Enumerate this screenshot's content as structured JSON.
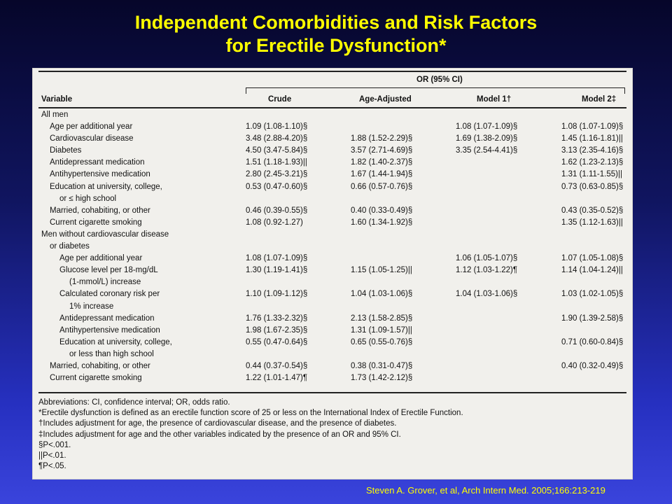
{
  "title": {
    "line1": "Independent Comorbidities and Risk Factors",
    "line2": "for Erectile Dysfunction*"
  },
  "table": {
    "group_header": "OR (95% CI)",
    "headers": [
      "Variable",
      "Crude",
      "Age-Adjusted",
      "Model 1†",
      "Model 2‡"
    ],
    "rows": [
      {
        "indent": 0,
        "variable": "All men",
        "crude": "",
        "age_adjusted": "",
        "model1": "",
        "model2": ""
      },
      {
        "indent": 1,
        "variable": "Age per additional year",
        "crude": "1.09 (1.08-1.10)§",
        "age_adjusted": "",
        "model1": "1.08 (1.07-1.09)§",
        "model2": "1.08 (1.07-1.09)§"
      },
      {
        "indent": 1,
        "variable": "Cardiovascular disease",
        "crude": "3.48 (2.88-4.20)§",
        "age_adjusted": "1.88 (1.52-2.29)§",
        "model1": "1.69 (1.38-2.09)§",
        "model2": "1.45 (1.16-1.81)||"
      },
      {
        "indent": 1,
        "variable": "Diabetes",
        "crude": "4.50 (3.47-5.84)§",
        "age_adjusted": "3.57 (2.71-4.69)§",
        "model1": "3.35 (2.54-4.41)§",
        "model2": "3.13 (2.35-4.16)§"
      },
      {
        "indent": 1,
        "variable": "Antidepressant medication",
        "crude": "1.51 (1.18-1.93)||",
        "age_adjusted": "1.82 (1.40-2.37)§",
        "model1": "",
        "model2": "1.62 (1.23-2.13)§"
      },
      {
        "indent": 1,
        "variable": "Antihypertensive medication",
        "crude": "2.80 (2.45-3.21)§",
        "age_adjusted": "1.67 (1.44-1.94)§",
        "model1": "",
        "model2": "1.31 (1.11-1.55)||"
      },
      {
        "indent": 1,
        "variable": "Education at university, college,",
        "crude": "0.53 (0.47-0.60)§",
        "age_adjusted": "0.66 (0.57-0.76)§",
        "model1": "",
        "model2": "0.73 (0.63-0.85)§"
      },
      {
        "indent": 2,
        "variable": "or ≤ high school",
        "crude": "",
        "age_adjusted": "",
        "model1": "",
        "model2": ""
      },
      {
        "indent": 1,
        "variable": "Married, cohabiting, or other",
        "crude": "0.46 (0.39-0.55)§",
        "age_adjusted": "0.40 (0.33-0.49)§",
        "model1": "",
        "model2": "0.43 (0.35-0.52)§"
      },
      {
        "indent": 1,
        "variable": "Current cigarette smoking",
        "crude": "1.08 (0.92-1.27)",
        "age_adjusted": "1.60 (1.34-1.92)§",
        "model1": "",
        "model2": "1.35 (1.12-1.63)||"
      },
      {
        "indent": 0,
        "variable": "Men without cardiovascular disease",
        "crude": "",
        "age_adjusted": "",
        "model1": "",
        "model2": ""
      },
      {
        "indent": 1,
        "variable": "or diabetes",
        "crude": "",
        "age_adjusted": "",
        "model1": "",
        "model2": ""
      },
      {
        "indent": 2,
        "variable": "Age per additional year",
        "crude": "1.08 (1.07-1.09)§",
        "age_adjusted": "",
        "model1": "1.06 (1.05-1.07)§",
        "model2": "1.07 (1.05-1.08)§"
      },
      {
        "indent": 2,
        "variable": "Glucose level per 18-mg/dL",
        "crude": "1.30 (1.19-1.41)§",
        "age_adjusted": "1.15 (1.05-1.25)||",
        "model1": "1.12 (1.03-1.22)¶",
        "model2": "1.14 (1.04-1.24)||"
      },
      {
        "indent": 3,
        "variable": "(1-mmol/L) increase",
        "crude": "",
        "age_adjusted": "",
        "model1": "",
        "model2": ""
      },
      {
        "indent": 2,
        "variable": "Calculated coronary risk per",
        "crude": "1.10 (1.09-1.12)§",
        "age_adjusted": "1.04 (1.03-1.06)§",
        "model1": "1.04 (1.03-1.06)§",
        "model2": "1.03 (1.02-1.05)§"
      },
      {
        "indent": 3,
        "variable": "1% increase",
        "crude": "",
        "age_adjusted": "",
        "model1": "",
        "model2": ""
      },
      {
        "indent": 2,
        "variable": "Antidepressant medication",
        "crude": "1.76 (1.33-2.32)§",
        "age_adjusted": "2.13 (1.58-2.85)§",
        "model1": "",
        "model2": "1.90 (1.39-2.58)§"
      },
      {
        "indent": 2,
        "variable": "Antihypertensive medication",
        "crude": "1.98 (1.67-2.35)§",
        "age_adjusted": "1.31 (1.09-1.57)||",
        "model1": "",
        "model2": ""
      },
      {
        "indent": 2,
        "variable": "Education at university, college,",
        "crude": "0.55 (0.47-0.64)§",
        "age_adjusted": "0.65 (0.55-0.76)§",
        "model1": "",
        "model2": "0.71 (0.60-0.84)§"
      },
      {
        "indent": 3,
        "variable": "or less than high school",
        "crude": "",
        "age_adjusted": "",
        "model1": "",
        "model2": ""
      },
      {
        "indent": 1,
        "variable": "Married, cohabiting, or other",
        "crude": "0.44 (0.37-0.54)§",
        "age_adjusted": "0.38 (0.31-0.47)§",
        "model1": "",
        "model2": "0.40 (0.32-0.49)§"
      },
      {
        "indent": 1,
        "variable": "Current cigarette smoking",
        "crude": "1.22 (1.01-1.47)¶",
        "age_adjusted": "1.73 (1.42-2.12)§",
        "model1": "",
        "model2": ""
      }
    ],
    "footnotes": [
      "Abbreviations: CI, confidence interval; OR, odds ratio.",
      "*Erectile dysfunction is defined as an erectile function score of 25 or less on the International Index of Erectile Function.",
      "†Includes adjustment for age, the presence of cardiovascular disease, and the presence of diabetes.",
      "‡Includes adjustment for age and the other variables indicated by the presence of an OR and 95% CI.",
      "§P<.001.",
      "||P<.01.",
      "¶P<.05."
    ]
  },
  "citation": "Steven A. Grover, et al, Arch Intern Med. 2005;166:213-219"
}
